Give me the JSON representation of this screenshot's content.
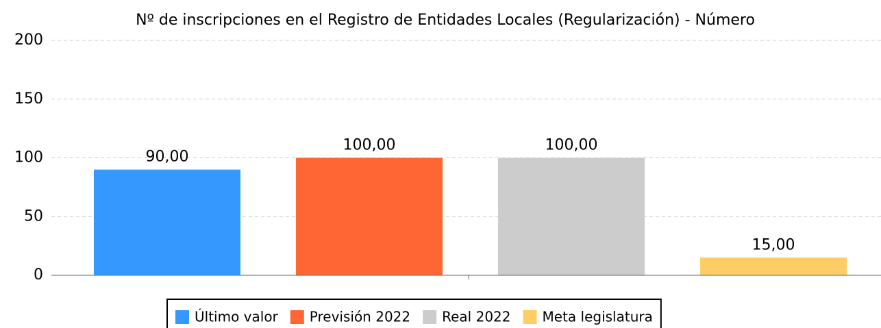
{
  "chart_data": {
    "type": "bar",
    "title": "Nº de inscripciones en el Registro de Entidades Locales (Regularización) - Número",
    "series": [
      {
        "name": "Último valor",
        "color": "#3399ff",
        "values": [
          90
        ],
        "value_labels": [
          "90,00"
        ]
      },
      {
        "name": "Previsión 2022",
        "color": "#ff6633",
        "values": [
          100
        ],
        "value_labels": [
          "100,00"
        ]
      },
      {
        "name": "Real 2022",
        "color": "#cccccc",
        "values": [
          100
        ],
        "value_labels": [
          "100,00"
        ]
      },
      {
        "name": "Meta legislatura",
        "color": "#ffcc66",
        "values": [
          15
        ],
        "value_labels": [
          "15,00"
        ]
      }
    ],
    "ylim": [
      0,
      200
    ],
    "yticks": [
      0,
      50,
      100,
      150,
      200
    ],
    "grid": true,
    "legend": "bottom"
  }
}
